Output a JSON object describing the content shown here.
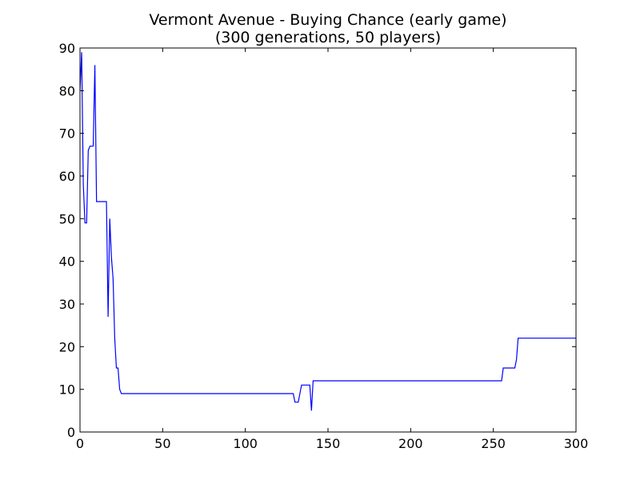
{
  "chart_data": {
    "type": "line",
    "title": "Vermont Avenue - Buying Chance (early game)",
    "subtitle": "(300 generations, 50 players)",
    "xlabel": "",
    "ylabel": "",
    "xlim": [
      0,
      300
    ],
    "ylim": [
      0,
      90
    ],
    "xticks": [
      0,
      50,
      100,
      150,
      200,
      250,
      300
    ],
    "yticks": [
      0,
      10,
      20,
      30,
      40,
      50,
      60,
      70,
      80,
      90
    ],
    "grid": false,
    "colors": {
      "line": "#0000ff",
      "axes": "#000000",
      "background": "#ffffff"
    },
    "series": [
      {
        "points": [
          [
            0,
            80
          ],
          [
            1,
            89
          ],
          [
            2,
            58
          ],
          [
            3,
            49
          ],
          [
            4,
            49
          ],
          [
            5,
            66
          ],
          [
            6,
            67
          ],
          [
            7,
            67
          ],
          [
            8,
            67
          ],
          [
            9,
            86
          ],
          [
            10,
            54
          ],
          [
            11,
            54
          ],
          [
            12,
            54
          ],
          [
            13,
            54
          ],
          [
            14,
            54
          ],
          [
            15,
            54
          ],
          [
            16,
            54
          ],
          [
            17,
            27
          ],
          [
            18,
            50
          ],
          [
            19,
            41
          ],
          [
            20,
            36
          ],
          [
            21,
            22
          ],
          [
            22,
            15
          ],
          [
            23,
            15
          ],
          [
            24,
            10
          ],
          [
            25,
            9
          ],
          [
            30,
            9
          ],
          [
            50,
            9
          ],
          [
            100,
            9
          ],
          [
            129,
            9
          ],
          [
            130,
            7
          ],
          [
            131,
            7
          ],
          [
            132,
            7
          ],
          [
            133,
            9
          ],
          [
            134,
            11
          ],
          [
            135,
            11
          ],
          [
            138,
            11
          ],
          [
            139,
            11
          ],
          [
            140,
            5
          ],
          [
            141,
            12
          ],
          [
            142,
            12
          ],
          [
            150,
            12
          ],
          [
            200,
            12
          ],
          [
            250,
            12
          ],
          [
            255,
            12
          ],
          [
            256,
            15
          ],
          [
            263,
            15
          ],
          [
            264,
            17
          ],
          [
            265,
            22
          ],
          [
            270,
            22
          ],
          [
            300,
            22
          ]
        ]
      }
    ]
  }
}
